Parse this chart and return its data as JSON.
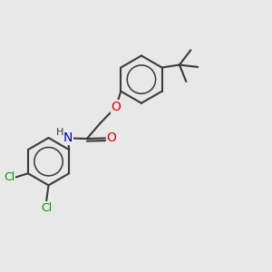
{
  "bg_color": "#e8e8e8",
  "bond_color": "#3a3a3a",
  "bond_width": 1.5,
  "atom_colors": {
    "O": "#e00000",
    "N": "#0000cc",
    "Cl": "#009900",
    "C": "#3a3a3a"
  },
  "font_size": 9,
  "figsize": [
    3.0,
    3.0
  ],
  "dpi": 100
}
